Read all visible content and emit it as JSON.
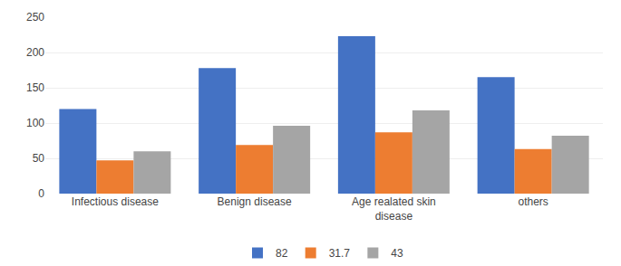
{
  "chart_data": {
    "type": "bar",
    "categories": [
      "Infectious disease",
      "Benign disease",
      "Age realated skin\ndisease",
      "others"
    ],
    "series": [
      {
        "name": "82",
        "color": "#4472C4",
        "values": [
          120,
          178,
          223,
          165
        ]
      },
      {
        "name": "31.7",
        "color": "#ED7D31",
        "values": [
          47,
          69,
          87,
          63
        ]
      },
      {
        "name": "43",
        "color": "#A5A5A5",
        "values": [
          60,
          96,
          118,
          82
        ]
      }
    ],
    "ylim": [
      0,
      250
    ],
    "yticks": [
      0,
      50,
      100,
      150,
      200,
      250
    ],
    "grid": true,
    "legend": "bottom"
  }
}
